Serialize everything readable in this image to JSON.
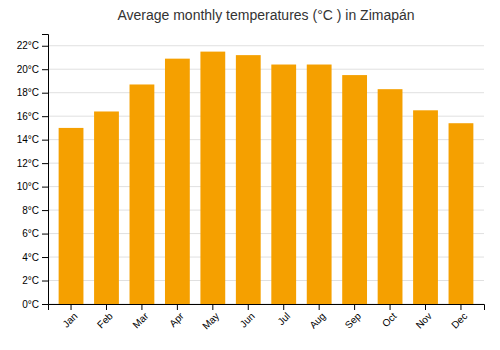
{
  "chart_data": {
    "type": "bar",
    "title": "Average monthly temperatures (°C ) in Zimapán",
    "categories": [
      "Jan",
      "Feb",
      "Mar",
      "Apr",
      "May",
      "Jun",
      "Jul",
      "Aug",
      "Sep",
      "Oct",
      "Nov",
      "Dec"
    ],
    "values": [
      15.0,
      16.4,
      18.7,
      20.9,
      21.5,
      21.2,
      20.4,
      20.4,
      19.5,
      18.3,
      16.5,
      15.4
    ],
    "color": "#F5A000",
    "ylim": [
      0,
      23
    ],
    "yticks": [
      {
        "value": 0,
        "label": "0°C"
      },
      {
        "value": 2,
        "label": "2°C"
      },
      {
        "value": 4,
        "label": "4°C"
      },
      {
        "value": 6,
        "label": "6°C"
      },
      {
        "value": 8,
        "label": "8°C"
      },
      {
        "value": 10,
        "label": "10°C"
      },
      {
        "value": 12,
        "label": "12°C"
      },
      {
        "value": 14,
        "label": "14°C"
      },
      {
        "value": 16,
        "label": "16°C"
      },
      {
        "value": 18,
        "label": "18°C"
      },
      {
        "value": 20,
        "label": "20°C"
      },
      {
        "value": 22,
        "label": "22°C"
      }
    ],
    "grid": true
  }
}
